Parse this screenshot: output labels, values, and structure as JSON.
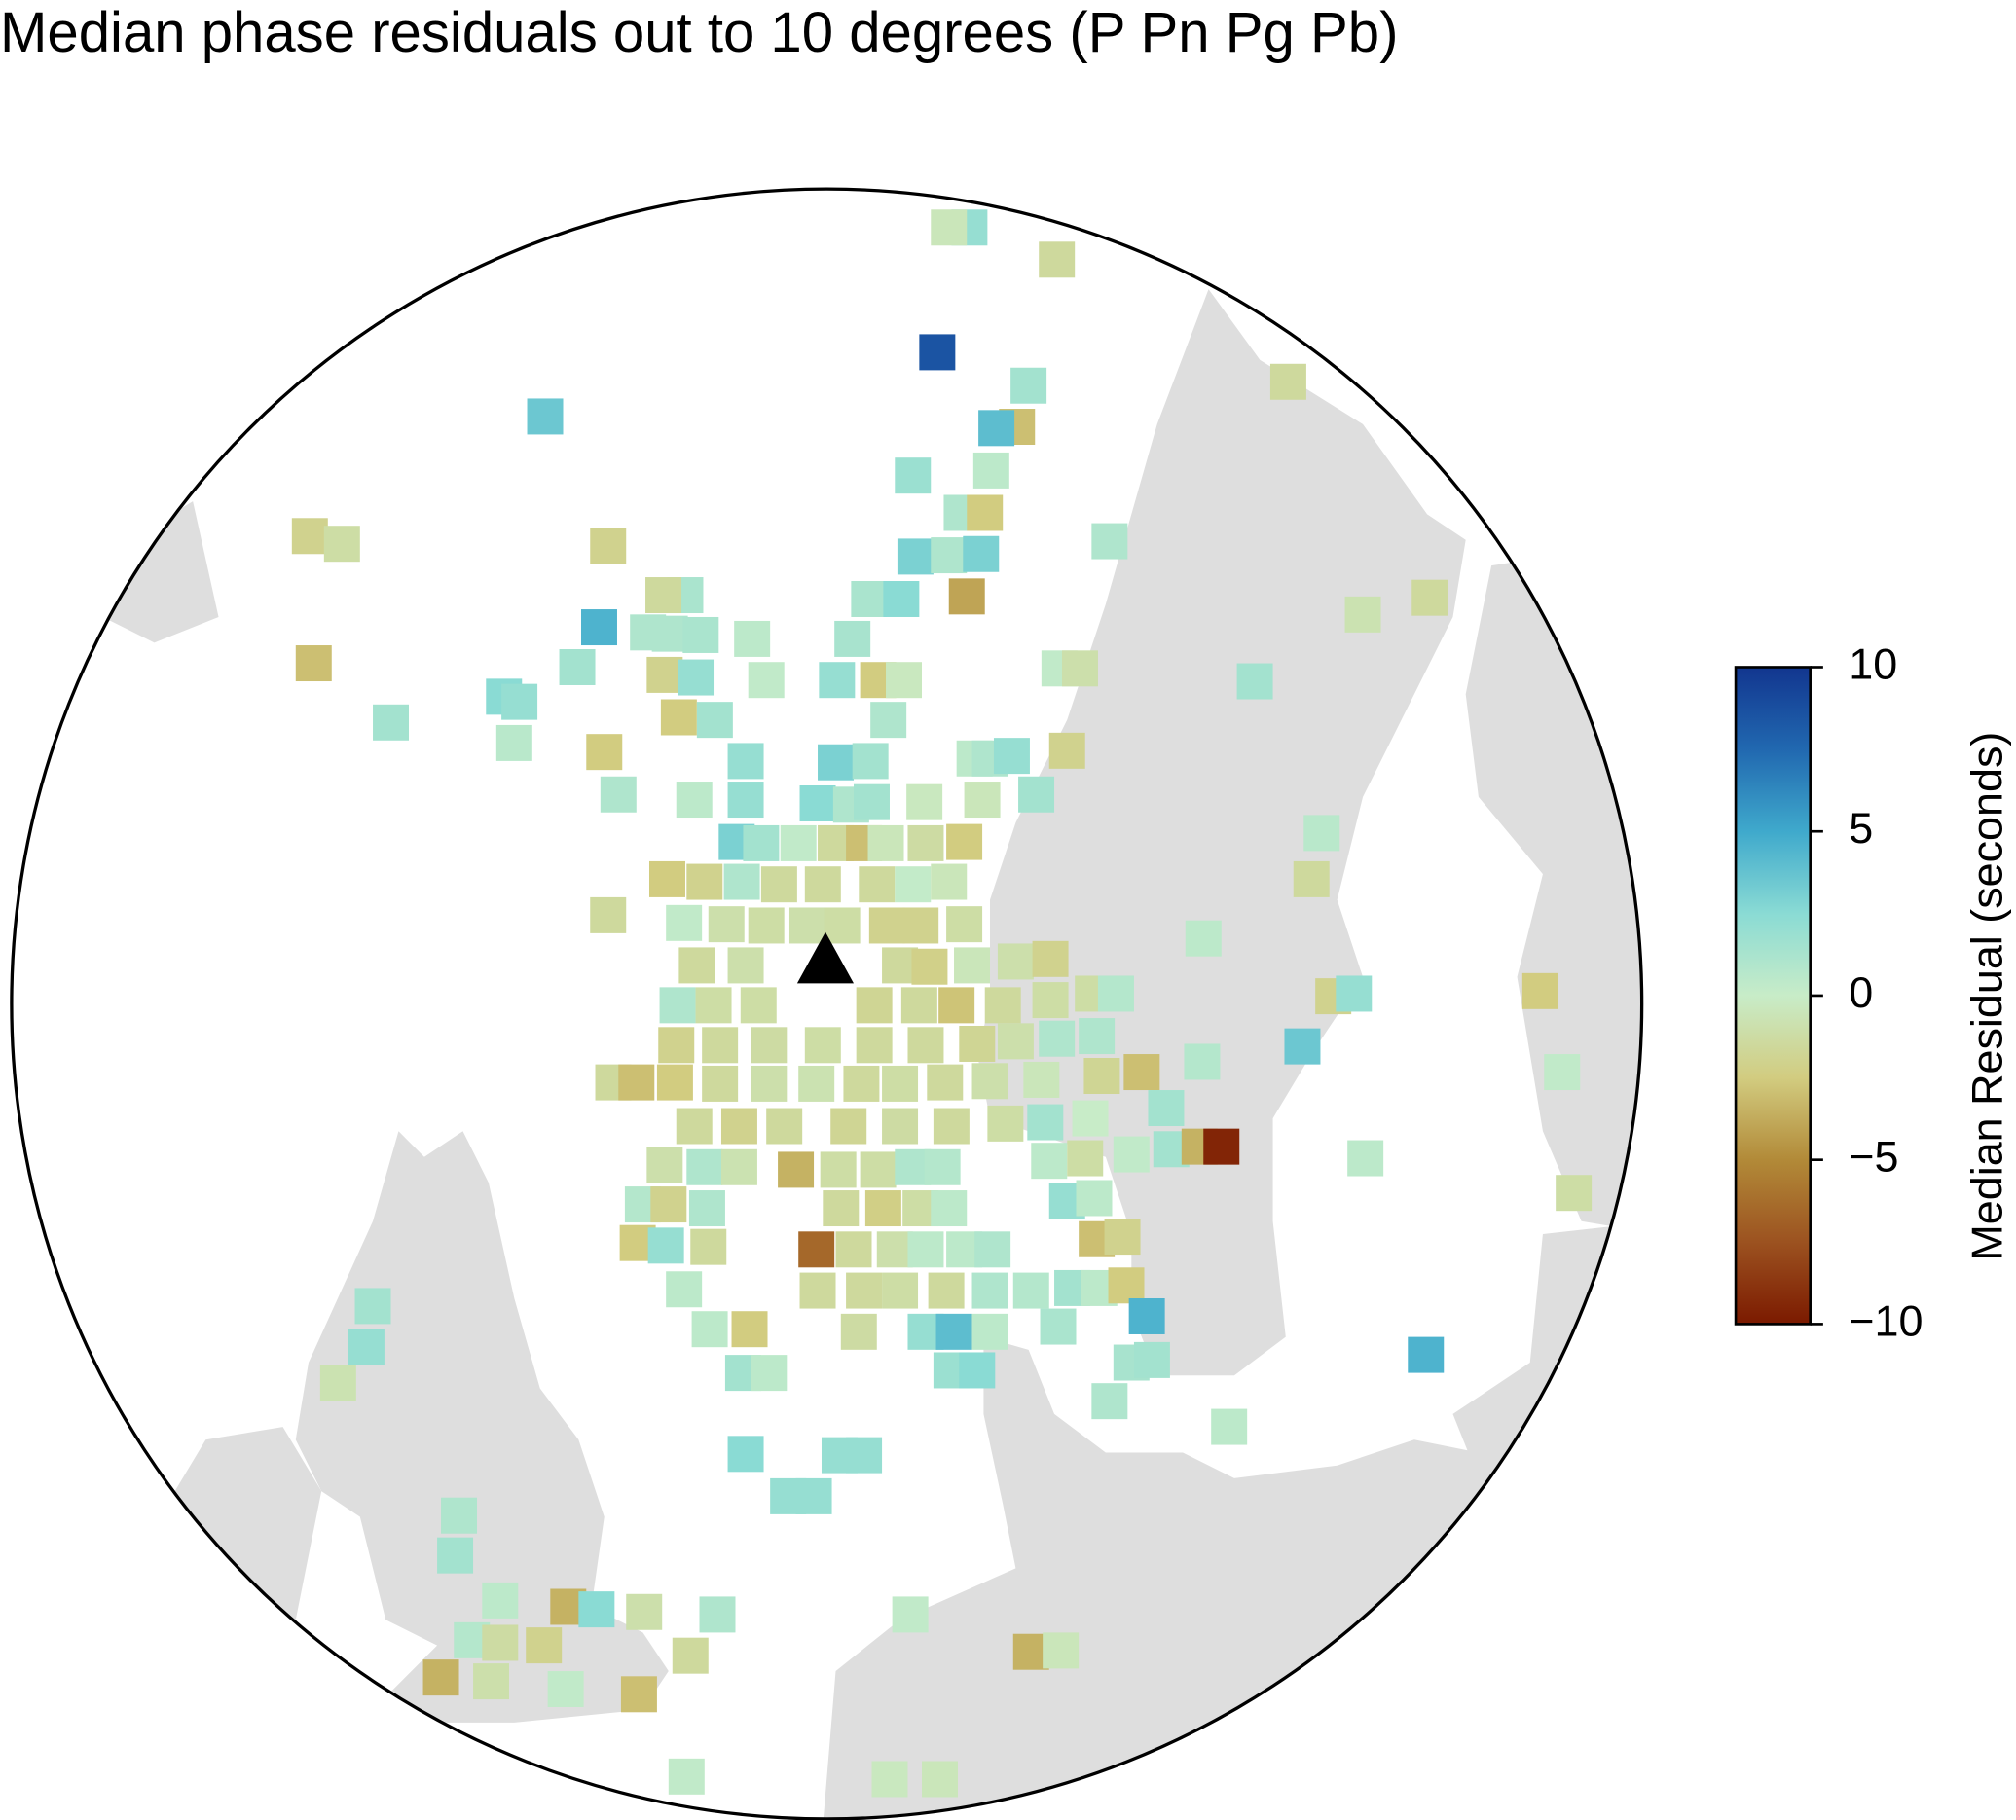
{
  "chart_data": {
    "type": "map",
    "title": "Median phase residuals out to 10 degrees (P Pn Pg Pb)",
    "colorbar_label": "Median Residual (seconds)",
    "ylim": [
      -10,
      10
    ],
    "yticks": [
      {
        "value": -10,
        "label": "−10"
      },
      {
        "value": -5,
        "label": "−5"
      },
      0,
      5,
      10
    ],
    "colors": [
      "#7b1a00",
      "#9c5220",
      "#b28a38",
      "#d2cc80",
      "#c8ecc8",
      "#8adbd4",
      "#3fa9cc",
      "#2168b0",
      "#12368f"
    ],
    "values": [
      2,
      -0.5,
      -1.5,
      8.5,
      1.5,
      -1.5,
      3.5,
      -3,
      4,
      0.5,
      1.8,
      1,
      -2.5,
      -2,
      -1.2,
      -2,
      1,
      3,
      1,
      3,
      1.2,
      -1.5,
      1.2,
      2.5,
      -4,
      -0.8,
      -1.5,
      4.5,
      1,
      1,
      1.2,
      0.5,
      1.3,
      -3,
      1.5,
      -2,
      2,
      0.3,
      2,
      -2.5,
      -0.3,
      0.3,
      -1,
      1.5,
      2.5,
      2,
      1.5,
      -2.5,
      1.5,
      1,
      0.6,
      -2.5,
      2,
      3,
      1.5,
      0.5,
      1,
      2,
      -2,
      1,
      0.5,
      2,
      2.5,
      1,
      1.5,
      -0.3,
      -0.5,
      1.5,
      0.6,
      -1.5,
      3,
      1.5,
      0.3,
      -1.5,
      -3,
      -0.5,
      -1.3,
      -2.5,
      -2.5,
      -2,
      1,
      -1.5,
      -1.5,
      -1.5,
      0.2,
      -0.5,
      -1.5,
      0.3,
      -1,
      -1.2,
      -1,
      -1.2,
      -2,
      -2,
      -1.2,
      0.5,
      -1.5,
      -1,
      -1.5,
      -2.2,
      -0.5,
      -1,
      -2,
      1,
      -1.2,
      -1.2,
      -1.8,
      -1.5,
      -2.8,
      -1.5,
      -1.2,
      -1.2,
      0.8,
      -2,
      2,
      -2.5,
      -2,
      -1.5,
      -1.3,
      -1.2,
      -1.5,
      -1.5,
      -1.8,
      -1,
      1,
      1,
      3.5,
      -1.5,
      -3,
      -2.5,
      -1.5,
      -1,
      -0.8,
      -1.5,
      -1.2,
      -1.5,
      -1,
      -0.5,
      -1.8,
      -3,
      0.8,
      0.3,
      -1.5,
      -2,
      -1.5,
      -1.8,
      -1.3,
      -1.5,
      -1.2,
      1.5,
      0,
      1.5,
      -1,
      1,
      -0.8,
      -3.5,
      -1.2,
      -1.2,
      1,
      0.8,
      0.5,
      -1.2,
      0.3,
      1.5,
      -3.5,
      -9.5,
      0.5,
      0.8,
      -2,
      1,
      -1.5,
      -2.3,
      -1.2,
      0.5,
      2,
      0.5,
      -1.2,
      -2.5,
      2,
      -1.5,
      -6.5,
      -1.5,
      -1,
      0.5,
      0.5,
      1,
      -3,
      -2,
      0.5,
      -1.5,
      -1.5,
      -1.2,
      -1.5,
      1,
      0.8,
      1.5,
      0.5,
      -2.5,
      1.5,
      0.5,
      -2.5,
      -1.3,
      2,
      4,
      0.5,
      1.2,
      4.5,
      2,
      4.5,
      -0.8,
      1.5,
      0.5,
      1.8,
      2.5,
      1.3,
      1.5,
      1,
      0.5,
      2.5,
      2,
      2,
      2,
      2,
      1,
      1.5,
      0.5,
      -3.5,
      2.5,
      -1,
      1,
      0.3,
      0.8,
      -1.3,
      -2,
      -1.5,
      -3.5,
      -0.5,
      -3.5,
      -1,
      0.3,
      -3,
      0.3,
      -0.3,
      -0.5
    ]
  }
}
